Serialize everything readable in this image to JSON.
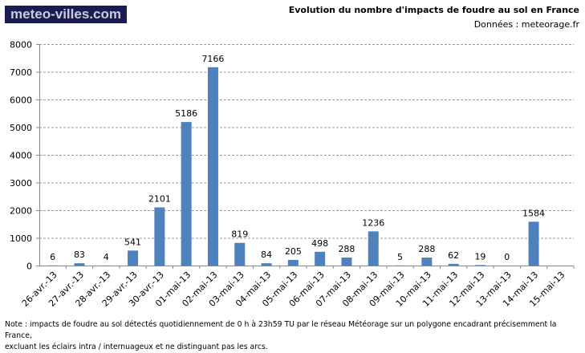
{
  "logo": "meteo-villes.com",
  "header": {
    "title": "Evolution du nombre d'impacts de foudre au sol en France",
    "subtitle": "Données : meteorage.fr"
  },
  "note": {
    "line1": "Note : impacts de foudre au sol détectés quotidiennement de 0 h à 23h59 TU par le réseau Météorage sur un polygone encadrant précisemment la France,",
    "line2": "excluant les éclairs intra / internuageux et ne distinguant pas les arcs."
  },
  "chart_data": {
    "type": "bar",
    "title": "Evolution du nombre d'impacts de foudre au sol en France",
    "xlabel": "",
    "ylabel": "",
    "ylim": [
      0,
      8000
    ],
    "yticks": [
      0,
      1000,
      2000,
      3000,
      4000,
      5000,
      6000,
      7000,
      8000
    ],
    "grid": true,
    "bar_color": "#4f81bd",
    "categories": [
      "26-avr.-13",
      "27-avr.-13",
      "28-avr.-13",
      "29-avr.-13",
      "30-avr.-13",
      "01-mai-13",
      "02-mai-13",
      "03-mai-13",
      "04-mai-13",
      "05-mai-13",
      "06-mai-13",
      "07-mai-13",
      "08-mai-13",
      "09-mai-13",
      "10-mai-13",
      "11-mai-13",
      "12-mai-13",
      "13-mai-13",
      "14-mai-13",
      "15-mai-13"
    ],
    "values": [
      6,
      83,
      4,
      541,
      2101,
      5186,
      7166,
      819,
      84,
      205,
      498,
      288,
      1236,
      5,
      288,
      62,
      19,
      0,
      1584,
      null
    ]
  }
}
